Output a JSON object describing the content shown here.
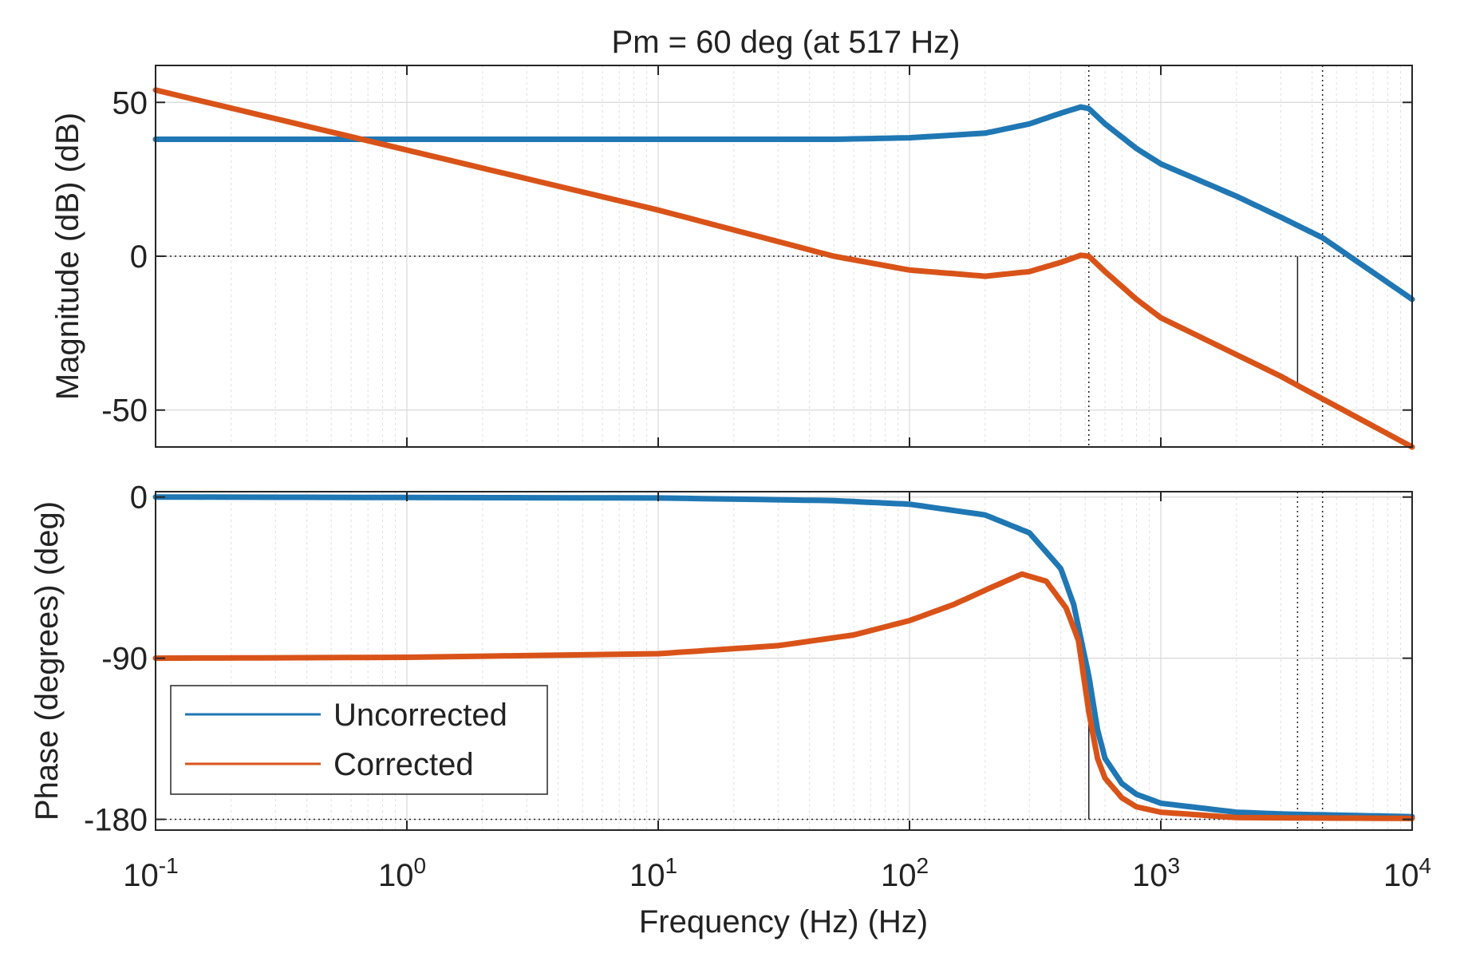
{
  "chart_data": {
    "type": "line",
    "title": "Pm = 60 deg (at 517 Hz)",
    "xlabel": "Frequency (Hz)  (Hz)",
    "xscale": "log",
    "xlim": [
      0.1,
      10000
    ],
    "x_ticks": [
      {
        "base": "10",
        "exp": "-1"
      },
      {
        "base": "10",
        "exp": "0"
      },
      {
        "base": "10",
        "exp": "1"
      },
      {
        "base": "10",
        "exp": "2"
      },
      {
        "base": "10",
        "exp": "3"
      },
      {
        "base": "10",
        "exp": "4"
      }
    ],
    "colors": {
      "uncorrected": "#1f77b4",
      "corrected": "#d95319"
    },
    "legend": {
      "position": "bottom-left",
      "entries": [
        "Uncorrected",
        "Corrected"
      ]
    },
    "magnitude": {
      "ylabel": "Magnitude (dB) (dB)",
      "ylim": [
        -62,
        62
      ],
      "yticks": [
        50,
        0,
        -50
      ],
      "ytick_labels": [
        "50",
        "0",
        "-50"
      ],
      "reference_line": 0,
      "series": [
        {
          "name": "Uncorrected",
          "x": [
            0.1,
            1,
            10,
            50,
            100,
            200,
            300,
            400,
            480,
            517,
            600,
            800,
            1000,
            2000,
            3000,
            4400,
            10000
          ],
          "y": [
            38,
            38,
            38,
            38,
            38.5,
            40,
            43,
            46.5,
            48.5,
            48,
            43,
            35,
            30,
            19.5,
            12.7,
            6,
            -14
          ]
        },
        {
          "name": "Corrected",
          "x": [
            0.1,
            1,
            10,
            50,
            100,
            200,
            300,
            400,
            480,
            517,
            600,
            800,
            1000,
            2000,
            3000,
            3500,
            10000
          ],
          "y": [
            54,
            34.5,
            15,
            0,
            -4.5,
            -6.5,
            -5,
            -2,
            0.3,
            0,
            -5,
            -14,
            -20,
            -32,
            -39,
            -42,
            -62
          ]
        }
      ],
      "margin_markers": [
        {
          "x": 517,
          "from": 0,
          "to": 0,
          "style": "dotted"
        },
        {
          "x": 3500,
          "from": 0,
          "to": -42,
          "style": "solid"
        },
        {
          "x": 4400,
          "from": 0,
          "to": 0,
          "style": "dotted"
        }
      ]
    },
    "phase": {
      "ylabel": "Phase (degrees) (deg)",
      "ylim": [
        -186,
        3
      ],
      "yticks": [
        0,
        -90,
        -180
      ],
      "ytick_labels": [
        "0",
        "-90",
        "-180"
      ],
      "reference_line": -180,
      "series": [
        {
          "name": "Uncorrected",
          "x": [
            0.1,
            10,
            50,
            100,
            200,
            300,
            400,
            450,
            517,
            560,
            600,
            700,
            800,
            1000,
            2000,
            3000,
            10000
          ],
          "y": [
            0,
            -0.5,
            -2,
            -4,
            -10,
            -20,
            -40,
            -60,
            -100,
            -130,
            -146,
            -160,
            -166,
            -171,
            -176,
            -177,
            -178.5
          ]
        },
        {
          "name": "Corrected",
          "x": [
            0.1,
            1,
            10,
            30,
            60,
            100,
            150,
            200,
            280,
            350,
            420,
            470,
            517,
            560,
            600,
            700,
            800,
            1000,
            2000,
            10000
          ],
          "y": [
            -90,
            -89.5,
            -87.5,
            -83,
            -77,
            -69,
            -60,
            -52,
            -43,
            -47,
            -62,
            -80,
            -120,
            -146,
            -157,
            -168,
            -173,
            -176,
            -179,
            -179.5
          ]
        }
      ],
      "margin_markers": [
        {
          "x": 517,
          "from": -120,
          "to": -180,
          "style": "solid"
        },
        {
          "x": 3500,
          "from": -180,
          "to": -180,
          "style": "dotted"
        },
        {
          "x": 4400,
          "from": -180,
          "to": -180,
          "style": "dotted"
        }
      ]
    }
  }
}
